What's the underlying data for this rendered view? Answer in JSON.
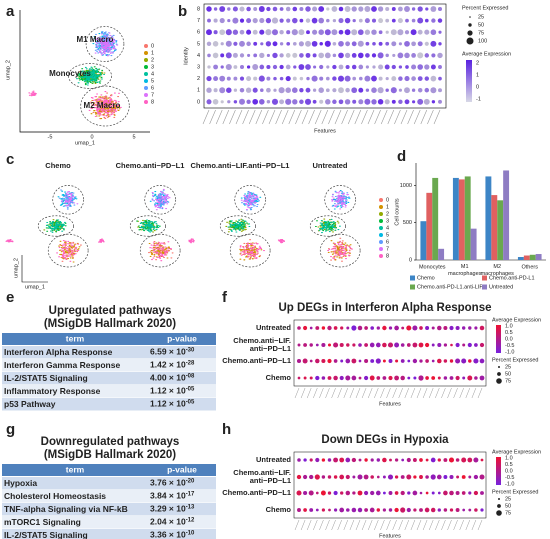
{
  "labels": [
    "a",
    "b",
    "c",
    "d",
    "e",
    "f",
    "g",
    "h"
  ],
  "panel_a": {
    "clusters": [
      "M1 Macro",
      "Monocytes",
      "M2 Macro"
    ],
    "x_label": "umap_1",
    "y_label": "umap_2",
    "xticks": [
      "-5",
      "0",
      "5"
    ],
    "legend": [
      "0",
      "1",
      "2",
      "3",
      "4",
      "5",
      "6",
      "7",
      "8"
    ]
  },
  "panel_b": {
    "y_label": "Identity",
    "x_label": "Features",
    "rows": [
      "8",
      "7",
      "6",
      "5",
      "4",
      "3",
      "2",
      "1",
      "0"
    ],
    "size_legend_title": "Percent Expressed",
    "size_legend": [
      "25",
      "50",
      "75",
      "100"
    ],
    "color_legend_title": "Average Expression",
    "color_legend": [
      "2",
      "1",
      "0",
      "-1"
    ]
  },
  "panel_c": {
    "titles": [
      "Chemo",
      "Chemo.anti−PD−L1",
      "Chemo.anti−LIF.anti−PD−L1",
      "Untreated"
    ],
    "x_label": "umap_1",
    "y_label": "umap_2",
    "legend": [
      "0",
      "1",
      "2",
      "3",
      "4",
      "5",
      "6",
      "7",
      "8"
    ]
  },
  "chart_data": {
    "type": "bar",
    "y_label": "Cell counts",
    "categories": [
      "Monocytes",
      "M1 macrophages",
      "M2 macrophages",
      "Others"
    ],
    "series": [
      {
        "name": "Chemo",
        "color": "#3d85c6",
        "values": [
          520,
          1100,
          1120,
          40
        ]
      },
      {
        "name": "Chemo.anti-PD-L1",
        "color": "#e06060",
        "values": [
          900,
          1080,
          870,
          60
        ]
      },
      {
        "name": "Chemo.anti-PD-L1.anti-LIF",
        "color": "#6aa84f",
        "values": [
          1100,
          1120,
          800,
          70
        ]
      },
      {
        "name": "Untreated",
        "color": "#8e7cc3",
        "values": [
          150,
          420,
          1200,
          80
        ]
      }
    ],
    "ylim": [
      0,
      1300
    ],
    "yticks": [
      0,
      500,
      1000
    ],
    "grid": false
  },
  "table_e": {
    "title": [
      "Upregulated pathways",
      "(MSigDB Hallmark 2020)"
    ],
    "header": [
      "term",
      "p-value"
    ],
    "rows": [
      [
        "Interferon Alpha Response",
        "6.59 × 10",
        "-30"
      ],
      [
        "Interferon Gamma Response",
        "1.42 × 10",
        "-28"
      ],
      [
        "IL-2/STAT5 Signaling",
        "4.00 × 10",
        "-08"
      ],
      [
        "Inflammatory Response",
        "1.12 × 10",
        "-05"
      ],
      [
        "p53 Pathway",
        "1.12 × 10",
        "-05"
      ]
    ]
  },
  "table_g": {
    "title": [
      "Downregulated pathways",
      "(MSigDB Hallmark 2020)"
    ],
    "header": [
      "term",
      "p-value"
    ],
    "rows": [
      [
        "Hypoxia",
        "3.76 × 10",
        "-20"
      ],
      [
        "Cholesterol Homeostasis",
        "3.84 × 10",
        "-17"
      ],
      [
        "TNF-alpha Signaling via NF-kB",
        "3.29 × 10",
        "-13"
      ],
      [
        "mTORC1 Signaling",
        "2.04 × 10",
        "-12"
      ],
      [
        "IL-2/STAT5 Signaling",
        "3.36 × 10",
        "-10"
      ]
    ]
  },
  "panel_f": {
    "title": "Up DEGs in Interferon Alpha Response",
    "rows": [
      "Untreated",
      "Chemo.anti−LIF.",
      "anti−PD−L1",
      "Chemo.anti−PD−L1",
      "Chemo"
    ],
    "x_label": "Features",
    "color_legend_title": "Average Expression",
    "color_legend": [
      "1.0",
      "0.5",
      "0.0",
      "-0.5",
      "-1.0"
    ],
    "size_legend_title": "Percent Expressed",
    "size_legend": [
      "25",
      "50",
      "75"
    ]
  },
  "panel_h": {
    "title": "Down DEGs in Hypoxia",
    "rows": [
      "Untreated",
      "Chemo.anti−LIF.",
      "anti−PD−L1",
      "Chemo.anti−PD−L1",
      "Chemo"
    ],
    "x_label": "Features",
    "color_legend_title": "Average Expression",
    "color_legend": [
      "1.0",
      "0.5",
      "0.0",
      "-0.5",
      "-1.0"
    ],
    "size_legend_title": "Percent Expressed",
    "size_legend": [
      "25",
      "50",
      "75"
    ]
  }
}
